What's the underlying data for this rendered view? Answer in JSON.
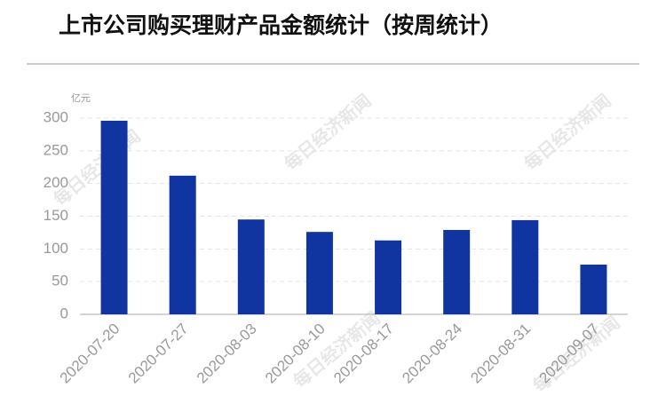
{
  "chart_data": {
    "type": "bar",
    "title": "上市公司购买理财产品金额统计（按周统计）",
    "y_label": "亿元",
    "watermark": "每日经济新闻",
    "categories": [
      "2020-07-20",
      "2020-07-27",
      "2020-08-03",
      "2020-08-10",
      "2020-08-17",
      "2020-08-24",
      "2020-08-31",
      "2020-09-07"
    ],
    "values": [
      296,
      212,
      145,
      126,
      113,
      129,
      144,
      76
    ],
    "color": "#1035a0",
    "ylim": [
      0,
      300
    ],
    "yticks": [
      0,
      50,
      100,
      150,
      200,
      250,
      300
    ],
    "grid": true
  }
}
